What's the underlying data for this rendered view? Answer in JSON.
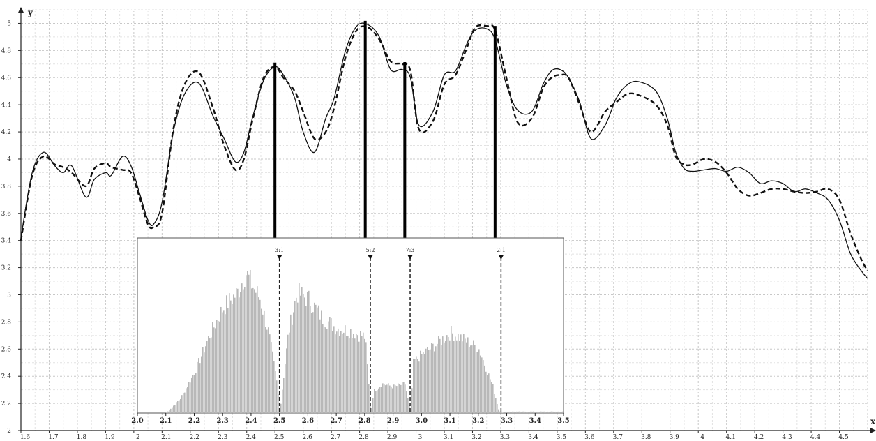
{
  "chart_data": [
    {
      "type": "line",
      "title": "",
      "xlabel": "x",
      "ylabel": "y",
      "xlim": [
        1.6,
        4.6
      ],
      "ylim": [
        2,
        5.1
      ],
      "x_ticks": [
        "1.6",
        "1.7",
        "1.8",
        "1.9",
        "2",
        "2.1",
        "2.2",
        "2.3",
        "2.4",
        "2.5",
        "2.6",
        "2.7",
        "2.8",
        "2.9",
        "3",
        "3.1",
        "3.2",
        "3.3",
        "3.4",
        "3.5",
        "3.6",
        "3.7",
        "3.8",
        "3.9",
        "4",
        "4.1",
        "4.2",
        "4.3",
        "4.4",
        "4.5"
      ],
      "y_ticks": [
        "2",
        "2.2",
        "2.4",
        "2.6",
        "2.8",
        "3",
        "3.2",
        "3.4",
        "3.6",
        "3.8",
        "4",
        "4.2",
        "4.4",
        "4.6",
        "4.8",
        "5"
      ],
      "grid": true,
      "series": [
        {
          "style": "solid",
          "x": [
            1.6,
            1.64,
            1.68,
            1.72,
            1.75,
            1.78,
            1.83,
            1.86,
            1.9,
            1.92,
            1.96,
            1.99,
            2.02,
            2.05,
            2.07,
            2.1,
            2.14,
            2.18,
            2.23,
            2.28,
            2.32,
            2.36,
            2.39,
            2.42,
            2.46,
            2.5,
            2.53,
            2.57,
            2.6,
            2.64,
            2.68,
            2.71,
            2.75,
            2.79,
            2.83,
            2.87,
            2.91,
            2.95,
            2.98,
            3.01,
            3.06,
            3.1,
            3.14,
            3.18,
            3.21,
            3.25,
            3.28,
            3.32,
            3.36,
            3.41,
            3.45,
            3.48,
            3.51,
            3.54,
            3.58,
            3.62,
            3.67,
            3.71,
            3.75,
            3.79,
            3.85,
            3.89,
            3.92,
            3.95,
            3.98,
            4.02,
            4.06,
            4.1,
            4.14,
            4.18,
            4.22,
            4.26,
            4.3,
            4.34,
            4.38,
            4.42,
            4.46,
            4.5,
            4.54,
            4.58,
            4.6
          ],
          "y": [
            3.42,
            3.9,
            4.05,
            3.95,
            3.9,
            3.95,
            3.72,
            3.85,
            3.9,
            3.88,
            4.02,
            3.95,
            3.75,
            3.55,
            3.52,
            3.68,
            4.2,
            4.48,
            4.56,
            4.32,
            4.15,
            3.98,
            4.05,
            4.3,
            4.58,
            4.68,
            4.62,
            4.45,
            4.2,
            4.05,
            4.3,
            4.45,
            4.8,
            4.98,
            4.99,
            4.9,
            4.66,
            4.66,
            4.6,
            4.25,
            4.35,
            4.62,
            4.65,
            4.85,
            4.95,
            4.96,
            4.88,
            4.55,
            4.36,
            4.35,
            4.55,
            4.65,
            4.66,
            4.6,
            4.42,
            4.15,
            4.25,
            4.45,
            4.55,
            4.57,
            4.5,
            4.3,
            4.05,
            3.93,
            3.91,
            3.92,
            3.93,
            3.91,
            3.94,
            3.9,
            3.82,
            3.84,
            3.82,
            3.76,
            3.78,
            3.75,
            3.7,
            3.55,
            3.3,
            3.17,
            3.12
          ]
        },
        {
          "style": "dashed",
          "x": [
            1.6,
            1.64,
            1.68,
            1.72,
            1.75,
            1.78,
            1.83,
            1.86,
            1.9,
            1.92,
            1.96,
            1.99,
            2.02,
            2.05,
            2.07,
            2.1,
            2.14,
            2.18,
            2.23,
            2.28,
            2.32,
            2.36,
            2.39,
            2.42,
            2.46,
            2.5,
            2.53,
            2.57,
            2.6,
            2.64,
            2.68,
            2.71,
            2.75,
            2.79,
            2.83,
            2.87,
            2.91,
            2.95,
            2.98,
            3.01,
            3.06,
            3.1,
            3.14,
            3.18,
            3.21,
            3.25,
            3.28,
            3.32,
            3.36,
            3.41,
            3.45,
            3.48,
            3.51,
            3.54,
            3.58,
            3.62,
            3.67,
            3.71,
            3.75,
            3.79,
            3.85,
            3.89,
            3.92,
            3.95,
            3.98,
            4.02,
            4.06,
            4.1,
            4.14,
            4.18,
            4.22,
            4.26,
            4.3,
            4.34,
            4.38,
            4.42,
            4.46,
            4.5,
            4.54,
            4.58,
            4.6
          ],
          "y": [
            3.4,
            3.88,
            4.02,
            3.96,
            3.94,
            3.9,
            3.8,
            3.93,
            3.97,
            3.94,
            3.92,
            3.9,
            3.72,
            3.52,
            3.5,
            3.6,
            4.22,
            4.55,
            4.64,
            4.38,
            4.1,
            3.92,
            4.0,
            4.28,
            4.6,
            4.68,
            4.6,
            4.5,
            4.35,
            4.15,
            4.2,
            4.38,
            4.75,
            4.95,
            4.97,
            4.88,
            4.72,
            4.7,
            4.65,
            4.22,
            4.28,
            4.55,
            4.62,
            4.82,
            4.97,
            4.98,
            4.95,
            4.6,
            4.27,
            4.3,
            4.52,
            4.6,
            4.62,
            4.6,
            4.4,
            4.2,
            4.35,
            4.42,
            4.48,
            4.47,
            4.4,
            4.25,
            4.02,
            3.96,
            3.96,
            4.0,
            3.98,
            3.9,
            3.78,
            3.73,
            3.75,
            3.78,
            3.78,
            3.76,
            3.75,
            3.76,
            3.78,
            3.7,
            3.45,
            3.25,
            3.18
          ]
        }
      ],
      "markers": [
        2.5,
        2.82,
        2.96,
        3.28
      ]
    },
    {
      "type": "bar",
      "title": "",
      "xlim": [
        2.0,
        3.5
      ],
      "x_ticks": [
        "2.0",
        "2.1",
        "2.2",
        "2.3",
        "2.4",
        "2.5",
        "2.6",
        "2.7",
        "2.8",
        "2.9",
        "3.0",
        "3.1",
        "3.2",
        "3.3",
        "3.4",
        "3.5"
      ],
      "markers": [
        {
          "x": 2.5,
          "label": "3:1"
        },
        {
          "x": 2.82,
          "label": "5:2"
        },
        {
          "x": 2.96,
          "label": "7:3"
        },
        {
          "x": 3.28,
          "label": "2:1"
        }
      ],
      "envelope": [
        {
          "x": 2.0,
          "v": 0
        },
        {
          "x": 2.1,
          "v": 0
        },
        {
          "x": 2.15,
          "v": 0.1
        },
        {
          "x": 2.2,
          "v": 0.28
        },
        {
          "x": 2.25,
          "v": 0.52
        },
        {
          "x": 2.3,
          "v": 0.72
        },
        {
          "x": 2.35,
          "v": 0.82
        },
        {
          "x": 2.38,
          "v": 0.96
        },
        {
          "x": 2.4,
          "v": 0.88
        },
        {
          "x": 2.43,
          "v": 0.78
        },
        {
          "x": 2.46,
          "v": 0.55
        },
        {
          "x": 2.49,
          "v": 0.2
        },
        {
          "x": 2.5,
          "v": 0
        },
        {
          "x": 2.51,
          "v": 0.2
        },
        {
          "x": 2.53,
          "v": 0.55
        },
        {
          "x": 2.56,
          "v": 0.82
        },
        {
          "x": 2.6,
          "v": 0.78
        },
        {
          "x": 2.65,
          "v": 0.65
        },
        {
          "x": 2.7,
          "v": 0.58
        },
        {
          "x": 2.75,
          "v": 0.56
        },
        {
          "x": 2.8,
          "v": 0.52
        },
        {
          "x": 2.82,
          "v": 0
        },
        {
          "x": 2.83,
          "v": 0.15
        },
        {
          "x": 2.86,
          "v": 0.2
        },
        {
          "x": 2.9,
          "v": 0.18
        },
        {
          "x": 2.94,
          "v": 0.2
        },
        {
          "x": 2.96,
          "v": 0
        },
        {
          "x": 2.97,
          "v": 0.35
        },
        {
          "x": 3.0,
          "v": 0.4
        },
        {
          "x": 3.05,
          "v": 0.47
        },
        {
          "x": 3.1,
          "v": 0.55
        },
        {
          "x": 3.15,
          "v": 0.5
        },
        {
          "x": 3.2,
          "v": 0.44
        },
        {
          "x": 3.25,
          "v": 0.18
        },
        {
          "x": 3.27,
          "v": 0.02
        },
        {
          "x": 3.28,
          "v": 0
        },
        {
          "x": 3.3,
          "v": 0.01
        },
        {
          "x": 3.5,
          "v": 0.01
        }
      ]
    }
  ]
}
